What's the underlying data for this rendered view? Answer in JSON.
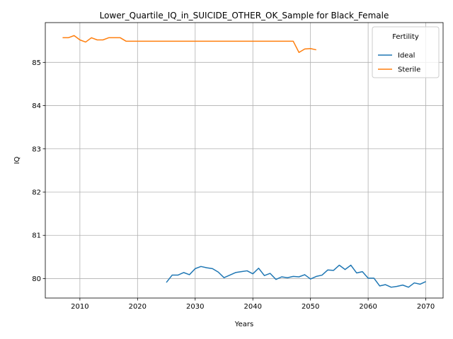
{
  "chart_data": {
    "type": "line",
    "title": "Lower_Quartile_IQ_in_SUICIDE_OTHER_OK_Sample for Black_Female",
    "xlabel": "Years",
    "ylabel": "IQ",
    "xlim": [
      2004,
      2073
    ],
    "ylim": [
      79.55,
      85.92
    ],
    "xticks": [
      2010,
      2020,
      2030,
      2040,
      2050,
      2060,
      2070
    ],
    "yticks": [
      80,
      81,
      82,
      83,
      84,
      85
    ],
    "grid": true,
    "legend": {
      "title": "Fertility",
      "placement": "top-right"
    },
    "series": [
      {
        "name": "Ideal",
        "color": "#1f77b4",
        "x": [
          2025,
          2026,
          2027,
          2028,
          2029,
          2030,
          2031,
          2032,
          2033,
          2034,
          2035,
          2036,
          2037,
          2038,
          2039,
          2040,
          2041,
          2042,
          2043,
          2044,
          2045,
          2046,
          2047,
          2048,
          2049,
          2050,
          2051,
          2052,
          2053,
          2054,
          2055,
          2056,
          2057,
          2058,
          2059,
          2060,
          2061,
          2062,
          2063,
          2064,
          2065,
          2066,
          2067,
          2068,
          2069,
          2070
        ],
        "y": [
          79.91,
          80.08,
          80.08,
          80.14,
          80.09,
          80.23,
          80.28,
          80.25,
          80.23,
          80.15,
          80.02,
          80.08,
          80.14,
          80.16,
          80.18,
          80.11,
          80.24,
          80.07,
          80.12,
          79.98,
          80.04,
          80.02,
          80.05,
          80.04,
          80.09,
          79.99,
          80.05,
          80.08,
          80.2,
          80.19,
          80.31,
          80.21,
          80.31,
          80.13,
          80.16,
          80.01,
          80.01,
          79.83,
          79.86,
          79.8,
          79.82,
          79.85,
          79.8,
          79.9,
          79.87,
          79.93
        ]
      },
      {
        "name": "Sterile",
        "color": "#ff7f0e",
        "x": [
          2007,
          2008,
          2009,
          2010,
          2011,
          2012,
          2013,
          2014,
          2015,
          2016,
          2017,
          2018,
          2019,
          2020,
          2021,
          2022,
          2023,
          2024,
          2025,
          2026,
          2027,
          2028,
          2029,
          2030,
          2031,
          2032,
          2033,
          2034,
          2035,
          2036,
          2037,
          2038,
          2039,
          2040,
          2041,
          2042,
          2043,
          2044,
          2045,
          2046,
          2047,
          2048,
          2049,
          2050,
          2051
        ],
        "y": [
          85.57,
          85.57,
          85.62,
          85.52,
          85.47,
          85.57,
          85.52,
          85.52,
          85.57,
          85.57,
          85.57,
          85.49,
          85.49,
          85.49,
          85.49,
          85.49,
          85.49,
          85.49,
          85.49,
          85.49,
          85.49,
          85.49,
          85.49,
          85.49,
          85.49,
          85.49,
          85.49,
          85.49,
          85.49,
          85.49,
          85.49,
          85.49,
          85.49,
          85.49,
          85.49,
          85.49,
          85.49,
          85.49,
          85.49,
          85.49,
          85.49,
          85.23,
          85.31,
          85.32,
          85.29
        ]
      }
    ]
  }
}
